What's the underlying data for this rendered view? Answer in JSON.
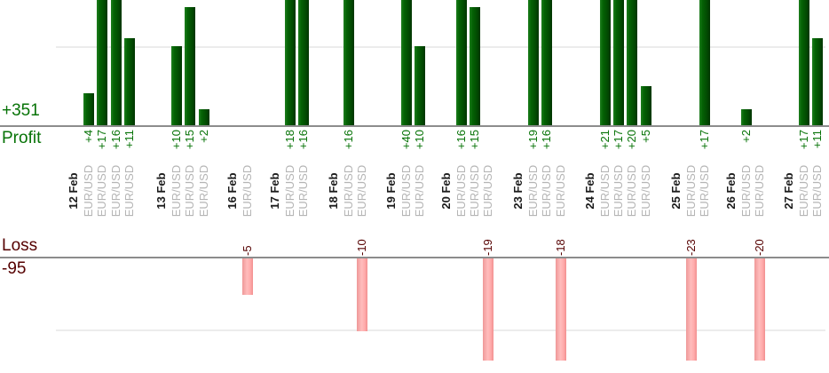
{
  "summary": {
    "profit_total": "+351",
    "profit_label": "Profit",
    "loss_label": "Loss",
    "loss_total": "-95"
  },
  "chart_data": {
    "type": "bar",
    "title": "",
    "description": "Per-trade daily results: green bars above upper baseline are winning trades (Profit +351), pink bars below lower baseline are losing trades (Loss -95). Bars taller than the visible plot area are clipped.",
    "profit_section": {
      "label": "Profit",
      "total": "+351",
      "axis_gridline_value": 10,
      "bar_color": "#046204",
      "text_color": "#077307"
    },
    "loss_section": {
      "label": "Loss",
      "total": "-95",
      "axis_gridline_value": -10,
      "bar_color": "#ffaaaa",
      "text_color": "#550000"
    },
    "groups": [
      {
        "date": "12 Feb",
        "trades": [
          {
            "symbol": "EUR/USD",
            "value": 4,
            "label": "+4"
          },
          {
            "symbol": "EUR/USD",
            "value": 17,
            "label": "+17"
          },
          {
            "symbol": "EUR/USD",
            "value": 16,
            "label": "+16"
          },
          {
            "symbol": "EUR/USD",
            "value": 11,
            "label": "+11"
          }
        ]
      },
      {
        "date": "13 Feb",
        "trades": [
          {
            "symbol": "EUR/USD",
            "value": 10,
            "label": "+10"
          },
          {
            "symbol": "EUR/USD",
            "value": 15,
            "label": "+15"
          },
          {
            "symbol": "EUR/USD",
            "value": 2,
            "label": "+2"
          }
        ]
      },
      {
        "date": "16 Feb",
        "trades": [
          {
            "symbol": "EUR/USD",
            "value": -5,
            "label": "-5"
          }
        ]
      },
      {
        "date": "17 Feb",
        "trades": [
          {
            "symbol": "EUR/USD",
            "value": 18,
            "label": "+18"
          },
          {
            "symbol": "EUR/USD",
            "value": 16,
            "label": "+16"
          }
        ]
      },
      {
        "date": "18 Feb",
        "trades": [
          {
            "symbol": "EUR/USD",
            "value": 16,
            "label": "+16"
          },
          {
            "symbol": "EUR/USD",
            "value": -10,
            "label": "-10"
          }
        ]
      },
      {
        "date": "19 Feb",
        "trades": [
          {
            "symbol": "EUR/USD",
            "value": 40,
            "label": "+40"
          },
          {
            "symbol": "EUR/USD",
            "value": 10,
            "label": "+10"
          }
        ]
      },
      {
        "date": "20 Feb",
        "trades": [
          {
            "symbol": "EUR/USD",
            "value": 16,
            "label": "+16"
          },
          {
            "symbol": "EUR/USD",
            "value": 15,
            "label": "+15"
          },
          {
            "symbol": "EUR/USD",
            "value": -19,
            "label": "-19"
          }
        ]
      },
      {
        "date": "23 Feb",
        "trades": [
          {
            "symbol": "EUR/USD",
            "value": 19,
            "label": "+19"
          },
          {
            "symbol": "EUR/USD",
            "value": 16,
            "label": "+16"
          },
          {
            "symbol": "EUR/USD",
            "value": -18,
            "label": "-18"
          }
        ]
      },
      {
        "date": "24 Feb",
        "trades": [
          {
            "symbol": "EUR/USD",
            "value": 21,
            "label": "+21"
          },
          {
            "symbol": "EUR/USD",
            "value": 17,
            "label": "+17"
          },
          {
            "symbol": "EUR/USD",
            "value": 20,
            "label": "+20"
          },
          {
            "symbol": "EUR/USD",
            "value": 5,
            "label": "+5"
          }
        ]
      },
      {
        "date": "25 Feb",
        "trades": [
          {
            "symbol": "EUR/USD",
            "value": -23,
            "label": "-23"
          },
          {
            "symbol": "EUR/USD",
            "value": 17,
            "label": "+17"
          }
        ]
      },
      {
        "date": "26 Feb",
        "trades": [
          {
            "symbol": "EUR/USD",
            "value": 2,
            "label": "+2"
          },
          {
            "symbol": "EUR/USD",
            "value": -20,
            "label": "-20"
          }
        ]
      },
      {
        "date": "27 Feb",
        "trades": [
          {
            "symbol": "EUR/USD",
            "value": 17,
            "label": "+17"
          },
          {
            "symbol": "EUR/USD",
            "value": 11,
            "label": "+11"
          }
        ]
      }
    ],
    "layout_hints": {
      "grid": "single light gridline per section at +10 / -10",
      "legend": "none",
      "bar_orientation": "vertical",
      "x_axis": "trade date groups, one column per trade, labels rotated 90deg"
    },
    "colors": {
      "profit_bar": "#046204",
      "loss_bar": "#ffaaaa",
      "profit_text": "#077307",
      "loss_text": "#550000",
      "date_text": "#1b1b1b",
      "symbol_text": "#b5b5b5",
      "axis_line": "#8c8c8c",
      "gridline": "#ececec"
    }
  }
}
